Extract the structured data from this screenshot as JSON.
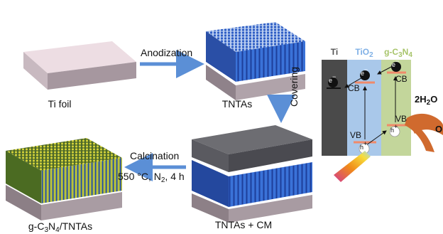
{
  "labels": {
    "ti_foil": "Ti foil",
    "tntas": "TNTAs",
    "tntas_cm": "TNTAs + CM",
    "gc3n4_tntas": {
      "a": "g-C",
      "s1": "3",
      "b": "N",
      "s2": "4",
      "c": "/TNTAs"
    }
  },
  "steps": {
    "anodization": "Anodization",
    "covering": "Covering",
    "calcination": "Calcination",
    "calcination_conditions": {
      "a": "550 °C, N",
      "s": "2",
      "b": ", 4 h"
    }
  },
  "band": {
    "ti": "Ti",
    "tio2": {
      "a": "TiO",
      "s": "2"
    },
    "gc3n4": {
      "a": "g-C",
      "s1": "3",
      "b": "N",
      "s2": "4"
    },
    "cb_left": "CB",
    "cb_right": "CB",
    "vb_left": "VB",
    "vb_right": "VB",
    "electron": "e",
    "electron_sign": "−",
    "hole": "h",
    "hole_sign": "+",
    "water": {
      "a": "2H",
      "s": "2",
      "b": "O"
    },
    "oxygen_partial": "O"
  },
  "colors": {
    "arrow": "#5b8fd6",
    "ti_bar": "#4a4a4a",
    "tio2_bar": "#a9c8ea",
    "tio2_label": "#7fb0e6",
    "gc3n4_bar": "#c3d69b",
    "gc3n4_label": "#a7c46a",
    "nanotube": "#2a59c0",
    "gc3n4_tube": "#c8c418",
    "foil_top": "#e8d6dd",
    "foil_side": "#9d9098",
    "orange_arrow": "#d06a2e"
  }
}
